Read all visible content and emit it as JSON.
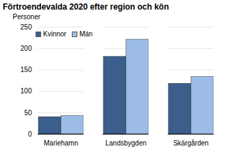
{
  "chart_data": {
    "type": "bar",
    "title": "Förtroendevalda 2020 efter region och kön",
    "y_label": "Personer",
    "categories": [
      "Mariehamn",
      "Landsbygden",
      "Skärgården"
    ],
    "series": [
      {
        "name": "Kvinnor",
        "color": "#3b5e8c",
        "values": [
          40,
          181,
          118
        ]
      },
      {
        "name": "Män",
        "color": "#9dbde6",
        "values": [
          43,
          221,
          134
        ]
      }
    ],
    "ylim": [
      0,
      250
    ],
    "yticks": [
      0,
      50,
      100,
      150,
      200,
      250
    ],
    "grid": true,
    "legend": "top-left"
  }
}
